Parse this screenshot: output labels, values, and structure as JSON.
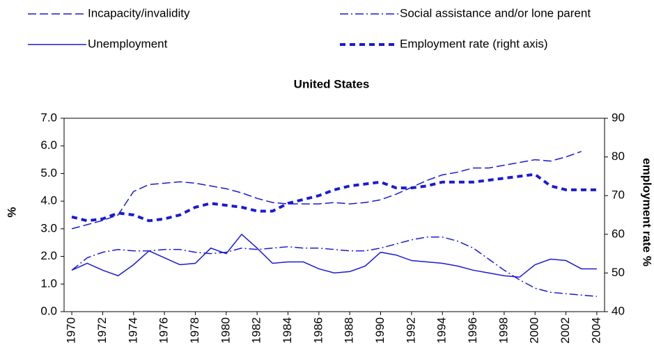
{
  "chart_data": {
    "type": "line",
    "title": "United States",
    "y_label": "%",
    "y2_label": "employment rate %",
    "x": [
      1970,
      1971,
      1972,
      1973,
      1974,
      1975,
      1976,
      1977,
      1978,
      1979,
      1980,
      1981,
      1982,
      1983,
      1984,
      1985,
      1986,
      1987,
      1988,
      1989,
      1990,
      1991,
      1992,
      1993,
      1994,
      1995,
      1996,
      1997,
      1998,
      1999,
      2000,
      2001,
      2002,
      2003,
      2004
    ],
    "xlim": [
      1969.5,
      2004.5
    ],
    "xticks": [
      1970,
      1972,
      1974,
      1976,
      1978,
      1980,
      1982,
      1984,
      1986,
      1988,
      1990,
      1992,
      1994,
      1996,
      1998,
      2000,
      2002,
      2004
    ],
    "ylim": [
      0,
      7
    ],
    "yticks": [
      {
        "value": 0,
        "label": "0.0"
      },
      {
        "value": 1,
        "label": "1.0"
      },
      {
        "value": 2,
        "label": "2.0"
      },
      {
        "value": 3,
        "label": "3.0"
      },
      {
        "value": 4,
        "label": "4.0"
      },
      {
        "value": 5,
        "label": "5.0"
      },
      {
        "value": 6,
        "label": "6.0"
      },
      {
        "value": 7,
        "label": "7.0"
      }
    ],
    "y2lim": [
      40,
      90
    ],
    "y2ticks": [
      40,
      50,
      60,
      70,
      80,
      90
    ],
    "legend_position": "top",
    "series": [
      {
        "name": "Incapacity/invalidity",
        "color": "#1a1ad4",
        "dash": "dashed",
        "values": [
          3.0,
          3.15,
          3.3,
          3.5,
          4.35,
          4.6,
          4.65,
          4.7,
          4.65,
          4.55,
          4.45,
          4.3,
          4.1,
          3.95,
          3.9,
          3.9,
          3.9,
          3.95,
          3.9,
          3.95,
          4.05,
          4.25,
          4.5,
          4.75,
          4.95,
          5.05,
          5.2,
          5.2,
          5.3,
          5.4,
          5.5,
          5.45,
          5.6,
          5.8,
          null
        ]
      },
      {
        "name": "Social assistance and/or lone parent",
        "color": "#1a1ad4",
        "dash": "dashdot",
        "values": [
          1.5,
          1.95,
          2.15,
          2.25,
          2.2,
          2.2,
          2.25,
          2.25,
          2.15,
          2.1,
          2.15,
          2.3,
          2.25,
          2.3,
          2.35,
          2.3,
          2.3,
          2.25,
          2.2,
          2.2,
          2.3,
          2.45,
          2.6,
          2.7,
          2.7,
          2.55,
          2.3,
          1.9,
          1.5,
          1.15,
          0.85,
          0.7,
          0.65,
          0.6,
          0.55
        ]
      },
      {
        "name": "Unemployment",
        "color": "#1a1ad4",
        "dash": "solid",
        "values": [
          1.5,
          1.75,
          1.5,
          1.3,
          1.7,
          2.2,
          1.95,
          1.7,
          1.75,
          2.3,
          2.1,
          2.8,
          2.3,
          1.75,
          1.8,
          1.8,
          1.55,
          1.4,
          1.45,
          1.65,
          2.15,
          2.05,
          1.85,
          1.8,
          1.75,
          1.65,
          1.5,
          1.4,
          1.3,
          1.25,
          1.7,
          1.9,
          1.85,
          1.55,
          1.55
        ]
      },
      {
        "name": "Employment rate (right axis)",
        "color": "#1a1ad4",
        "dash": "dotted",
        "axis": "y2",
        "values": [
          64.5,
          63.5,
          64,
          65.5,
          65,
          63.5,
          64,
          65,
          67,
          68,
          67.5,
          67,
          66,
          66,
          68,
          69,
          70,
          71.5,
          72.5,
          73,
          73.5,
          72,
          72,
          72.5,
          73.5,
          73.5,
          73.5,
          74,
          74.5,
          75,
          75.5,
          72.5,
          71.5,
          71.5,
          71.5
        ]
      }
    ]
  }
}
